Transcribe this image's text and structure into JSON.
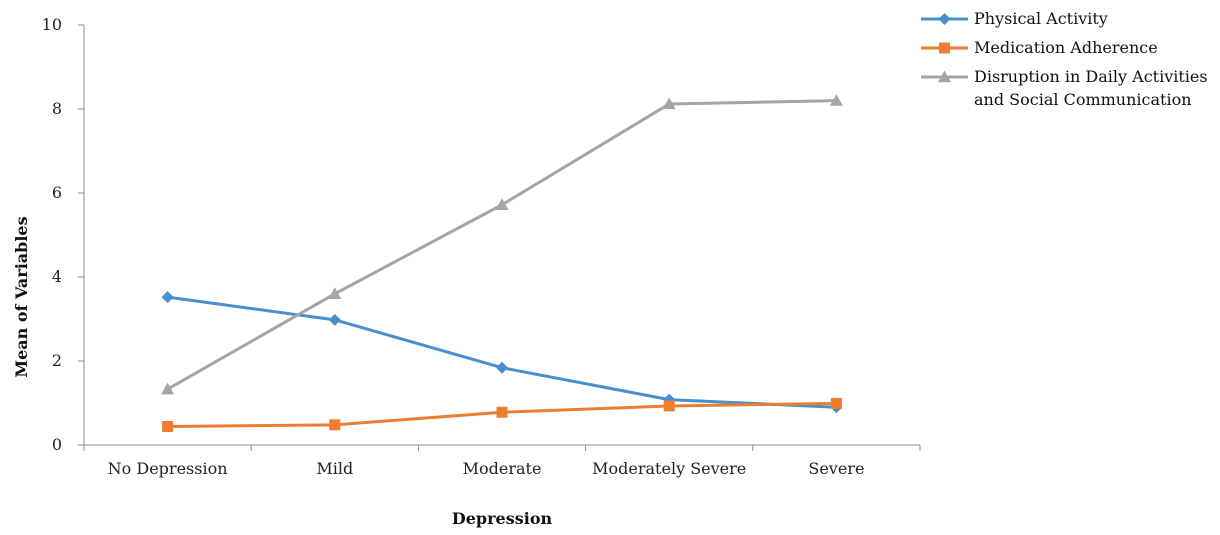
{
  "chart_data": {
    "type": "line",
    "title": "",
    "xlabel": "Depression",
    "ylabel": "Mean of Variables",
    "categories": [
      "No Depression",
      "Mild",
      "Moderate",
      "Moderately Severe",
      "Severe"
    ],
    "ylim": [
      0,
      10
    ],
    "yticks": [
      0,
      2,
      4,
      6,
      8,
      10
    ],
    "grid": false,
    "legend_position": "top-right",
    "series": [
      {
        "name": "Physical Activity",
        "values": [
          3.52,
          2.98,
          1.84,
          1.08,
          0.9
        ],
        "color": "#4a8fcd",
        "marker": "diamond"
      },
      {
        "name": "Medication Adherence",
        "values": [
          0.44,
          0.48,
          0.78,
          0.93,
          0.99
        ],
        "color": "#ed7d31",
        "marker": "square"
      },
      {
        "name": "Disruption in Daily Activities and Social Communication",
        "name_lines": [
          "Disruption in Daily Activities",
          "and Social Communication"
        ],
        "values": [
          1.33,
          3.6,
          5.72,
          8.12,
          8.2
        ],
        "color": "#a5a5a5",
        "marker": "triangle"
      }
    ]
  }
}
